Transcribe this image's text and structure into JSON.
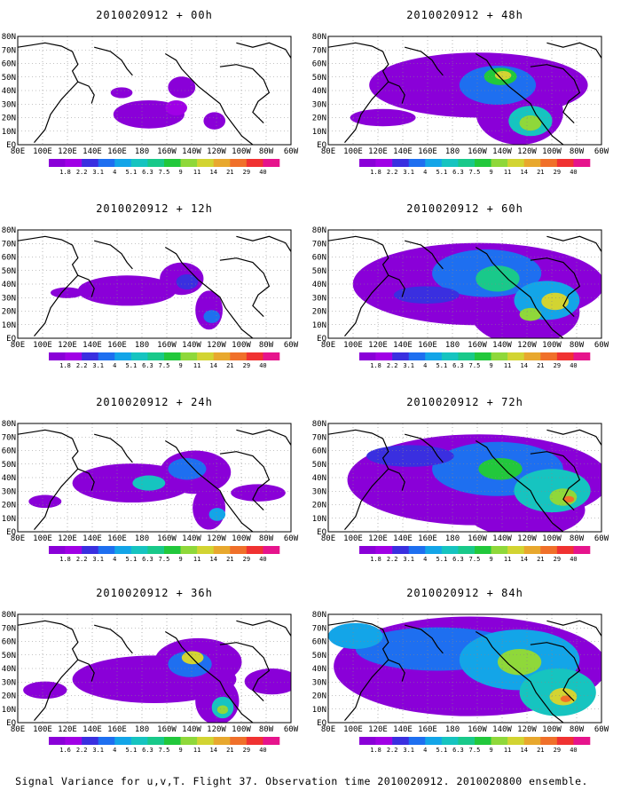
{
  "figure": {
    "caption": "Signal Variance for u,v,T. Flight 37. Observation time 2010020912. 2010020800 ensemble."
  },
  "axes": {
    "lon_labels": [
      "80E",
      "100E",
      "120E",
      "140E",
      "160E",
      "180",
      "160W",
      "140W",
      "120W",
      "100W",
      "80W",
      "60W"
    ],
    "lat_labels": [
      "EQ",
      "10N",
      "20N",
      "30N",
      "40N",
      "50N",
      "60N",
      "70N",
      "80N"
    ]
  },
  "colorbar": {
    "labels": [
      "1.8",
      "2.2",
      "3.1",
      "4",
      "5.1",
      "6.3",
      "7.5",
      "9",
      "11",
      "14",
      "21",
      "29",
      "40"
    ],
    "labels_alt": [
      "1.6",
      "2.2",
      "3.1",
      "4",
      "5.1",
      "6.3",
      "7.5",
      "9",
      "11",
      "14",
      "21",
      "29",
      "40"
    ],
    "colors": [
      "#8a00d8",
      "#a000e6",
      "#3a2fe0",
      "#1e6ff0",
      "#13a5e8",
      "#16c4c0",
      "#19c98a",
      "#22c83c",
      "#8fd83a",
      "#d2d432",
      "#e8a82e",
      "#f0702a",
      "#f03232",
      "#e6148c"
    ]
  },
  "panels": [
    {
      "title": "2010020912 + 00h",
      "level": 0,
      "cbar": "labels"
    },
    {
      "title": "2010020912 + 48h",
      "level": 4,
      "cbar": "labels"
    },
    {
      "title": "2010020912 + 12h",
      "level": 1,
      "cbar": "labels"
    },
    {
      "title": "2010020912 + 60h",
      "level": 5,
      "cbar": "labels"
    },
    {
      "title": "2010020912 + 24h",
      "level": 2,
      "cbar": "labels"
    },
    {
      "title": "2010020912 + 72h",
      "level": 6,
      "cbar": "labels"
    },
    {
      "title": "2010020912 + 36h",
      "level": 3,
      "cbar": "labels_alt"
    },
    {
      "title": "2010020912 + 84h",
      "level": 7,
      "cbar": "labels"
    }
  ]
}
